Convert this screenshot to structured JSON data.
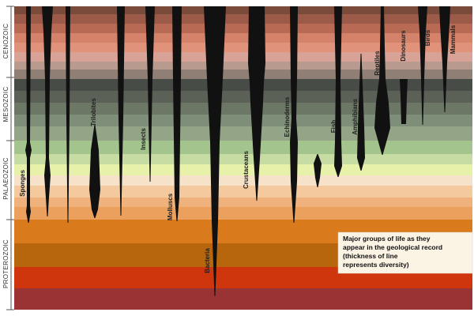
{
  "eras": [
    "CENOZOIC",
    "MESOZOIC",
    "PALAEOZOIC",
    "PROTEROZOIC"
  ],
  "groups": [
    "Sponges",
    "Trilobites",
    "Insects",
    "Molluscs",
    "Bacteria",
    "Crustaceans",
    "Echinoderms",
    "Fish",
    "Amphibians",
    "Reptiles",
    "Dinosaurs",
    "Birds",
    "Mammals"
  ],
  "note": [
    "Major groups of life as they",
    "appear in the geological record",
    "(thickness of line",
    "represents diversity)"
  ]
}
